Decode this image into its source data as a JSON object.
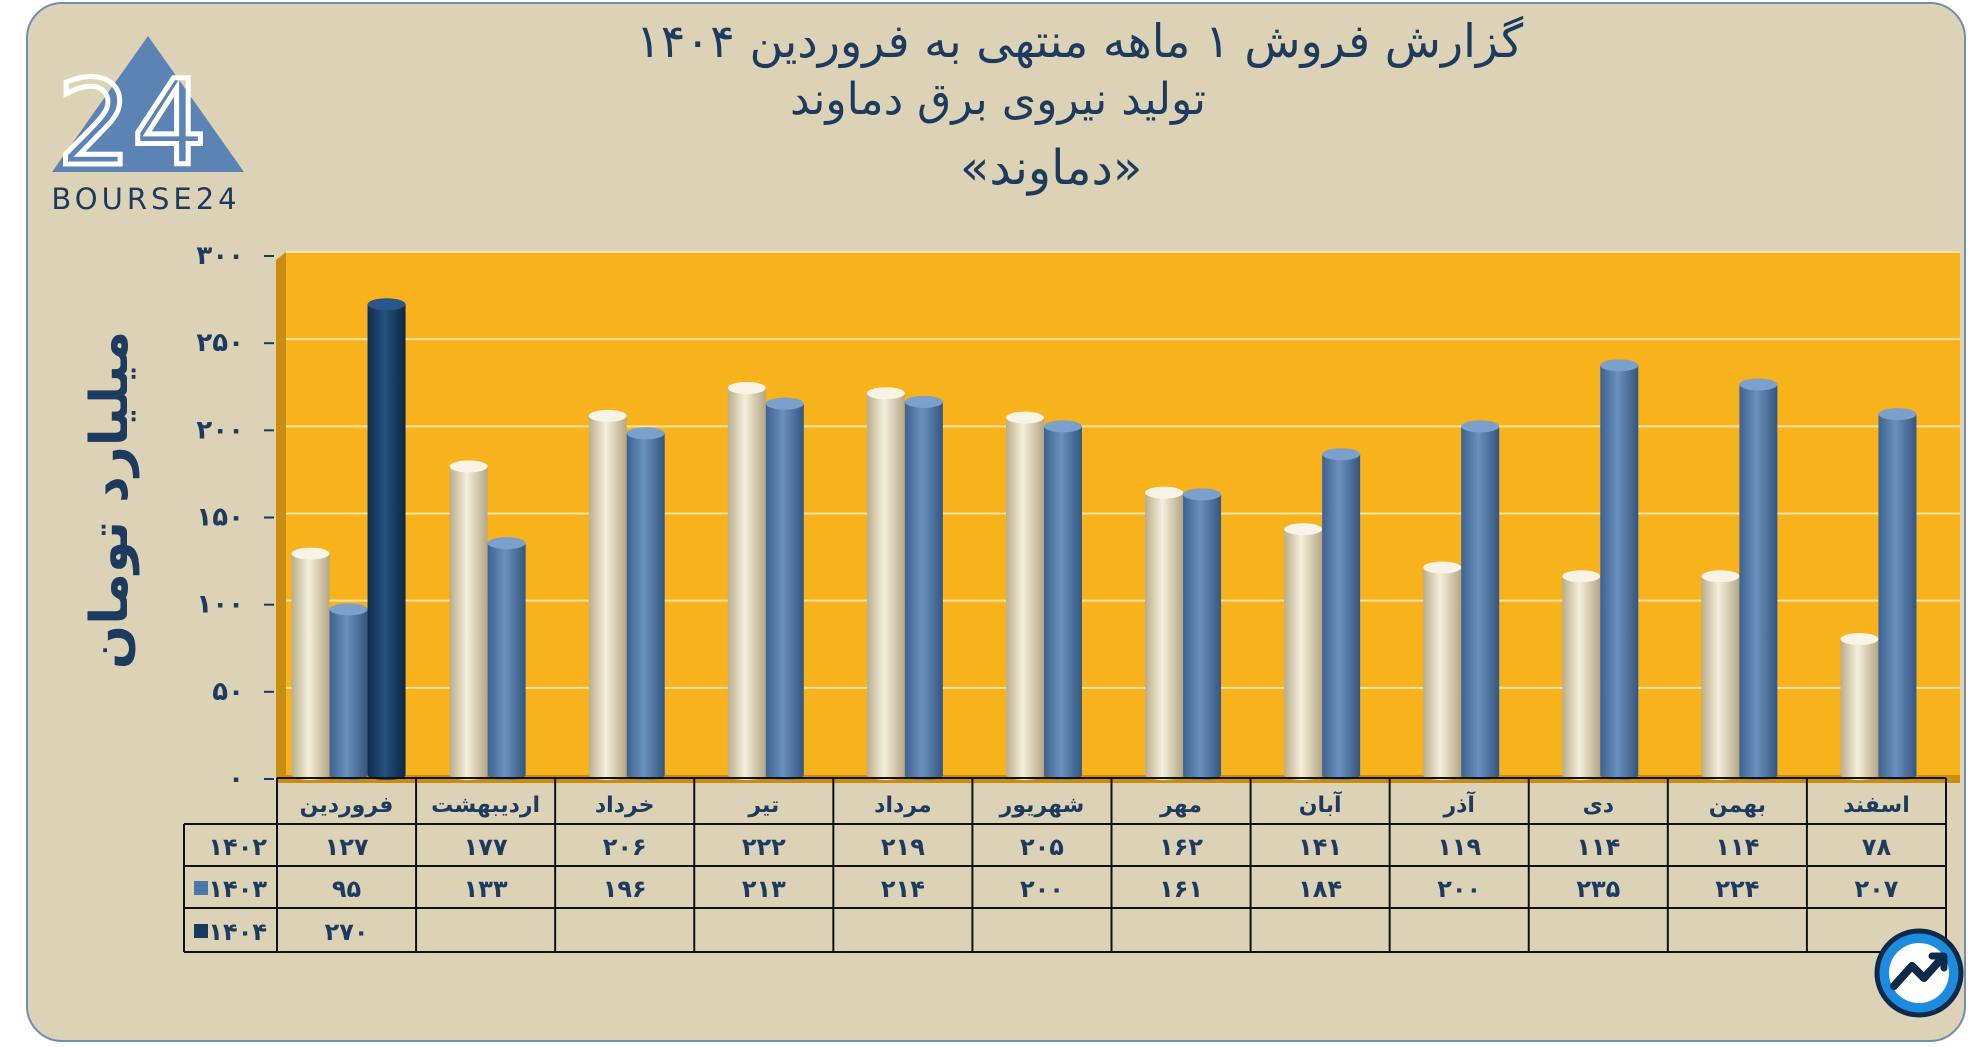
{
  "header": {
    "line1": "گزارش  فروش ۱ ماهه منتهی به فروردین ۱۴۰۴",
    "line2": "تولید نیروی برق دماوند",
    "line3": "«دماوند»"
  },
  "logo": {
    "text": "BOURSE24",
    "mark": "24"
  },
  "colors": {
    "background": "#dcd2b6",
    "plot_bg": "#f7b21c",
    "series_1402": "#e8e0c4",
    "series_1403": "#4e77a8",
    "series_1404": "#163a62",
    "text": "#1c3b5e"
  },
  "chart_data": {
    "type": "bar",
    "title": "گزارش  فروش ۱ ماهه منتهی به فروردین ۱۴۰۴",
    "ylabel": "میلیارد تومان",
    "xlabel": "",
    "ylim": [
      0,
      300
    ],
    "yticks": [
      0,
      50,
      100,
      150,
      200,
      250,
      300
    ],
    "ytick_labels": [
      "۰",
      "۵۰",
      "۱۰۰",
      "۱۵۰",
      "۲۰۰",
      "۲۵۰",
      "۳۰۰"
    ],
    "grid": true,
    "categories": [
      "فروردین",
      "اردیبهشت",
      "خرداد",
      "تیر",
      "مرداد",
      "شهریور",
      "مهر",
      "آبان",
      "آذر",
      "دی",
      "بهمن",
      "اسفند"
    ],
    "series": [
      {
        "name": "۱۴۰۲",
        "values": [
          127,
          177,
          206,
          222,
          219,
          205,
          162,
          141,
          119,
          114,
          114,
          78
        ],
        "labels": [
          "۱۲۷",
          "۱۷۷",
          "۲۰۶",
          "۲۲۲",
          "۲۱۹",
          "۲۰۵",
          "۱۶۲",
          "۱۴۱",
          "۱۱۹",
          "۱۱۴",
          "۱۱۴",
          "۷۸"
        ]
      },
      {
        "name": "۱۴۰۳",
        "values": [
          95,
          133,
          196,
          213,
          214,
          200,
          161,
          184,
          200,
          235,
          224,
          207
        ],
        "labels": [
          "۹۵",
          "۱۳۳",
          "۱۹۶",
          "۲۱۳",
          "۲۱۴",
          "۲۰۰",
          "۱۶۱",
          "۱۸۴",
          "۲۰۰",
          "۲۳۵",
          "۲۲۴",
          "۲۰۷"
        ]
      },
      {
        "name": "۱۴۰۴",
        "values": [
          270,
          null,
          null,
          null,
          null,
          null,
          null,
          null,
          null,
          null,
          null,
          null
        ],
        "labels": [
          "۲۷۰",
          "",
          "",
          "",
          "",
          "",
          "",
          "",
          "",
          "",
          "",
          ""
        ]
      }
    ]
  }
}
